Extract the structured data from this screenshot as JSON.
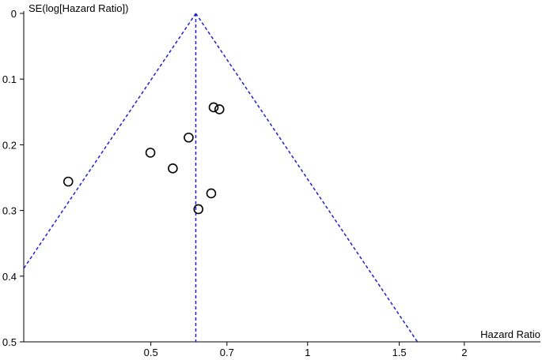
{
  "chart_data": {
    "type": "scatter",
    "title": "",
    "xlabel": "Hazard Ratio",
    "ylabel": "SE(log[Hazard Ratio])",
    "x_scale": "log",
    "y_reversed": true,
    "xlim": [
      0.285,
      2.8
    ],
    "ylim": [
      0,
      0.5
    ],
    "x_ticks": [
      0.5,
      0.7,
      1,
      1.5,
      2
    ],
    "x_tick_labels": [
      "0.5",
      "0.7",
      "1",
      "1.5",
      "2"
    ],
    "y_ticks": [
      0,
      0.1,
      0.2,
      0.3,
      0.4,
      0.5
    ],
    "y_tick_labels": [
      "0",
      "0.1",
      "0.2",
      "0.3",
      "0.4",
      "0.5"
    ],
    "grid": false,
    "pooled_estimate": 0.61,
    "funnel_line_color": "#1f1fcc",
    "marker": "open-circle",
    "points": [
      {
        "x": 0.66,
        "y": 0.143
      },
      {
        "x": 0.677,
        "y": 0.146
      },
      {
        "x": 0.591,
        "y": 0.189
      },
      {
        "x": 0.499,
        "y": 0.212
      },
      {
        "x": 0.551,
        "y": 0.236
      },
      {
        "x": 0.347,
        "y": 0.256
      },
      {
        "x": 0.653,
        "y": 0.274
      },
      {
        "x": 0.617,
        "y": 0.298
      }
    ]
  }
}
